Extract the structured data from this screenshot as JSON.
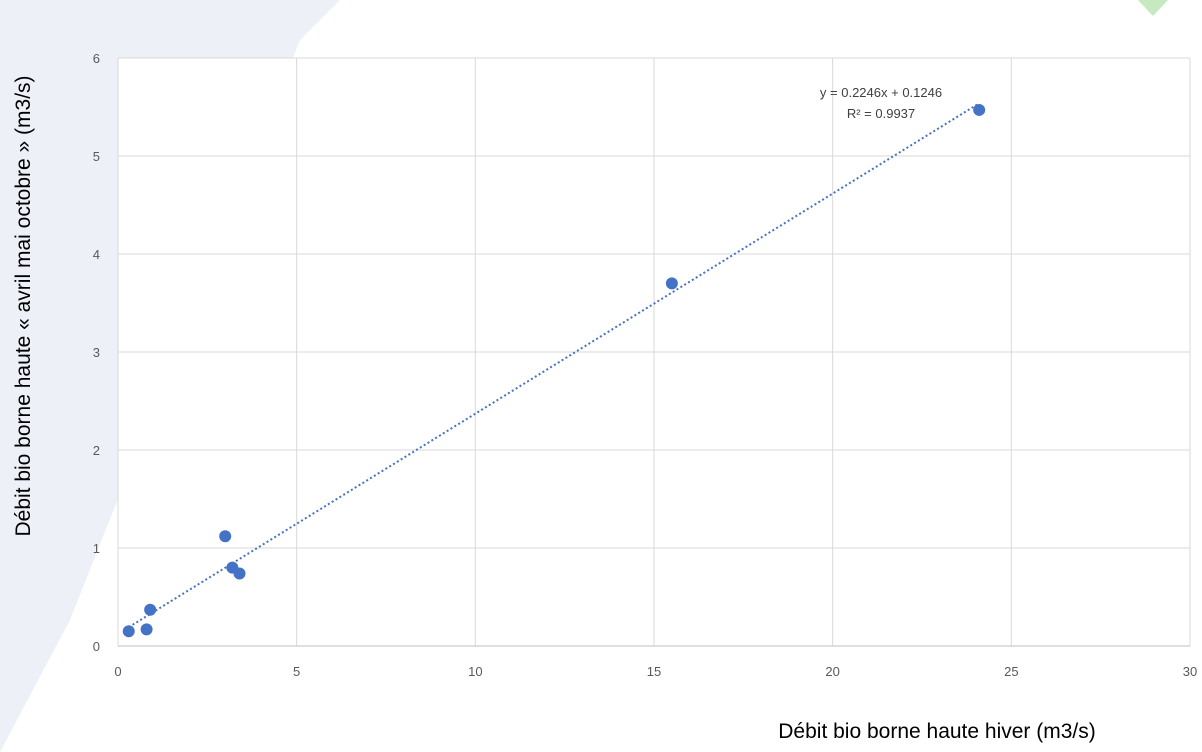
{
  "colors": {
    "marker": "#4472C4",
    "trendline": "#4472C4",
    "grid": "#D9D9D9",
    "axis": "#BFBFBF",
    "ticks": "#595959",
    "decor_shape": "#EEF0F8",
    "decor_accent": "#C6E9C0"
  },
  "chart_data": {
    "type": "scatter",
    "xlabel": "Débit bio borne haute hiver (m3/s)",
    "ylabel": "Débit bio borne haute « avril mai octobre » (m3/s)",
    "xlim": [
      0,
      30
    ],
    "ylim": [
      0,
      6
    ],
    "xticks": [
      0,
      5,
      10,
      15,
      20,
      25,
      30
    ],
    "yticks": [
      0,
      1,
      2,
      3,
      4,
      5,
      6
    ],
    "grid": true,
    "points": [
      {
        "x": 0.3,
        "y": 0.15
      },
      {
        "x": 0.8,
        "y": 0.17
      },
      {
        "x": 0.9,
        "y": 0.37
      },
      {
        "x": 3.0,
        "y": 1.12
      },
      {
        "x": 3.2,
        "y": 0.8
      },
      {
        "x": 3.4,
        "y": 0.74
      },
      {
        "x": 15.5,
        "y": 3.7
      },
      {
        "x": 24.1,
        "y": 5.47
      }
    ],
    "trendline": {
      "type": "linear",
      "slope": 0.2246,
      "intercept": 0.1246,
      "x_range": [
        0.3,
        24.1
      ],
      "equation_label": "y = 0.2246x + 0.1246",
      "r2_label": "R² = 0.9937"
    }
  }
}
